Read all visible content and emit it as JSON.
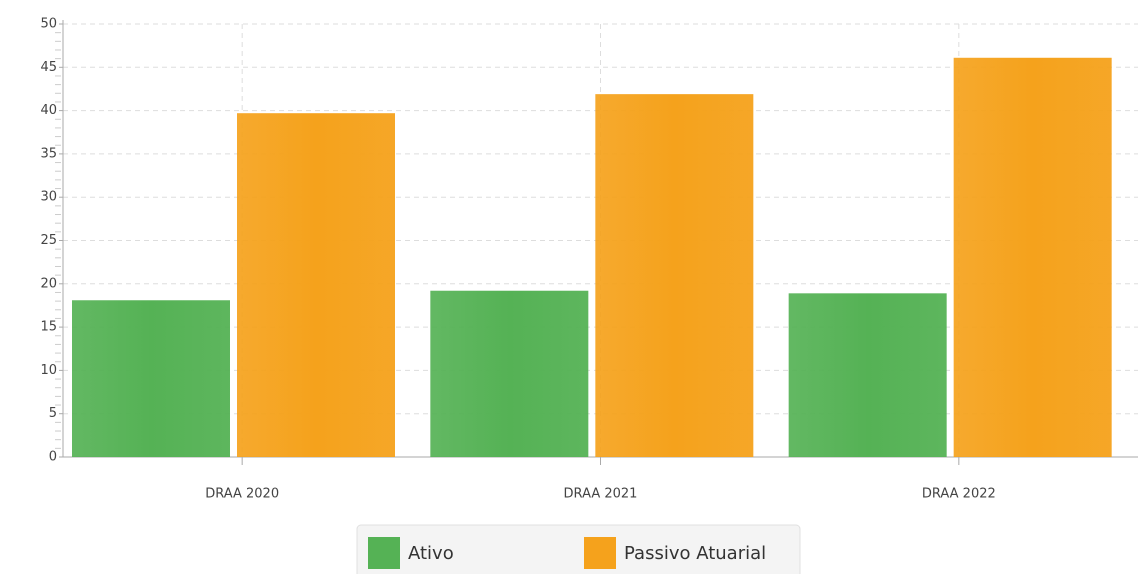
{
  "chart_data": {
    "type": "bar",
    "categories": [
      "DRAA 2020",
      "DRAA 2021",
      "DRAA 2022"
    ],
    "series": [
      {
        "name": "Ativo",
        "color": "#55b255",
        "values": [
          18.1,
          19.2,
          18.9
        ]
      },
      {
        "name": "Passivo Atuarial",
        "color": "#f5a21c",
        "values": [
          39.7,
          41.9,
          46.1
        ]
      }
    ],
    "ylim": [
      0,
      50
    ],
    "yticks": [
      0,
      5,
      10,
      15,
      20,
      25,
      30,
      35,
      40,
      45,
      50
    ],
    "grid": true,
    "legend": "bottom"
  }
}
